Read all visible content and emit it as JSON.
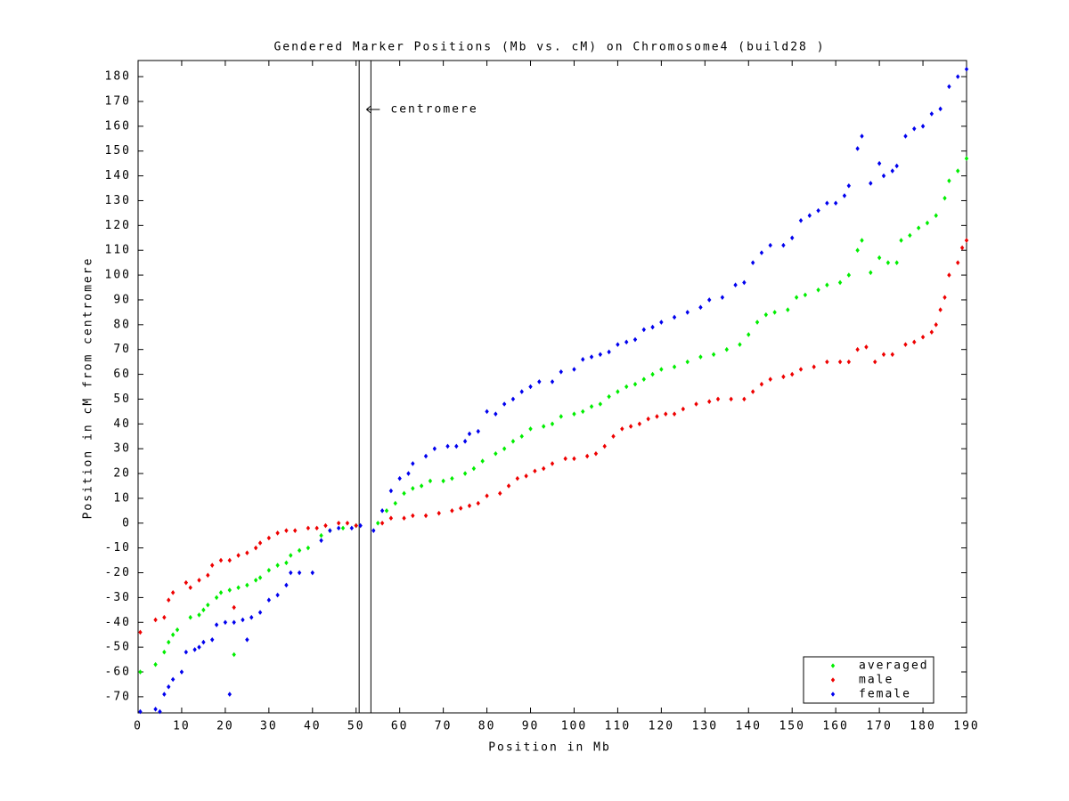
{
  "chart_data": {
    "type": "scatter",
    "title": "Gendered Marker Positions (Mb vs. cM) on Chromosome4 (build28 )",
    "x_label": "Position in Mb",
    "y_label": "Position in cM from centromere",
    "annotation": "centromere",
    "centromere_x": [
      50.7,
      53.4
    ],
    "xlim": [
      0,
      190
    ],
    "ylim": [
      -76.5,
      186.5
    ],
    "xticks": [
      0,
      10,
      20,
      30,
      40,
      50,
      60,
      70,
      80,
      90,
      100,
      110,
      120,
      130,
      140,
      150,
      160,
      170,
      180,
      190
    ],
    "yticks": [
      -70,
      -60,
      -50,
      -40,
      -30,
      -20,
      -10,
      0,
      10,
      20,
      30,
      40,
      50,
      60,
      70,
      80,
      90,
      100,
      110,
      120,
      130,
      140,
      150,
      160,
      170,
      180
    ],
    "legend": "lower right",
    "series": [
      {
        "name": "averaged",
        "color": "#00ee00",
        "x": [
          0.5,
          4,
          6,
          7,
          8,
          9,
          12,
          14,
          15,
          16,
          18,
          19,
          21,
          22,
          23,
          25,
          27,
          28,
          30,
          32,
          34,
          35,
          37,
          39,
          42,
          44,
          47,
          50,
          55,
          57,
          59,
          61,
          63,
          65,
          67,
          70,
          72,
          75,
          77,
          79,
          82,
          84,
          86,
          88,
          90,
          93,
          95,
          97,
          100,
          102,
          104,
          106,
          108,
          110,
          112,
          114,
          116,
          118,
          120,
          123,
          126,
          129,
          132,
          135,
          138,
          140,
          142,
          144,
          146,
          149,
          151,
          153,
          156,
          158,
          161,
          163,
          165,
          166,
          168,
          170,
          172,
          174,
          175,
          177,
          179,
          181,
          183,
          185,
          186,
          188,
          190
        ],
        "values": [
          -60,
          -57,
          -52,
          -48,
          -45,
          -43,
          -38,
          -37,
          -35,
          -33,
          -30,
          -28,
          -27,
          -53,
          -26,
          -25,
          -23,
          -22,
          -19,
          -17,
          -16,
          -13,
          -11,
          -10,
          -5,
          -3,
          -2,
          -1,
          0,
          5,
          8,
          12,
          14,
          15,
          17,
          17,
          18,
          20,
          22,
          25,
          28,
          30,
          33,
          35,
          38,
          39,
          40,
          43,
          44,
          45,
          47,
          48,
          51,
          53,
          55,
          56,
          58,
          60,
          62,
          63,
          65,
          67,
          68,
          70,
          72,
          76,
          81,
          84,
          85,
          86,
          91,
          92,
          94,
          96,
          97,
          100,
          110,
          114,
          101,
          107,
          105,
          105,
          114,
          116,
          119,
          121,
          124,
          131,
          138,
          142,
          147
        ]
      },
      {
        "name": "male",
        "color": "#ee0000",
        "x": [
          0.5,
          4,
          6,
          7,
          8,
          11,
          12,
          14,
          16,
          17,
          19,
          21,
          22,
          23,
          25,
          27,
          28,
          30,
          32,
          34,
          36,
          39,
          41,
          43,
          46,
          48,
          50,
          56,
          58,
          61,
          63,
          66,
          69,
          72,
          74,
          76,
          78,
          80,
          83,
          85,
          87,
          89,
          91,
          93,
          95,
          98,
          100,
          103,
          105,
          107,
          109,
          111,
          113,
          115,
          117,
          119,
          121,
          123,
          125,
          128,
          131,
          133,
          136,
          139,
          141,
          143,
          145,
          148,
          150,
          152,
          155,
          158,
          161,
          163,
          165,
          167,
          169,
          171,
          173,
          176,
          178,
          180,
          182,
          183,
          184,
          185,
          186,
          188,
          189,
          190
        ],
        "values": [
          -44,
          -39,
          -38,
          -31,
          -28,
          -24,
          -26,
          -23,
          -21,
          -17,
          -15,
          -15,
          -34,
          -13,
          -12,
          -10,
          -8,
          -6,
          -4,
          -3,
          -3,
          -2,
          -2,
          -1,
          0,
          0,
          -1,
          0,
          2,
          2,
          3,
          3,
          4,
          5,
          6,
          7,
          8,
          11,
          12,
          15,
          18,
          19,
          21,
          22,
          24,
          26,
          26,
          27,
          28,
          31,
          35,
          38,
          39,
          40,
          42,
          43,
          44,
          44,
          46,
          48,
          49,
          50,
          50,
          50,
          53,
          56,
          58,
          59,
          60,
          62,
          63,
          65,
          65,
          65,
          70,
          71,
          65,
          68,
          68,
          72,
          73,
          75,
          77,
          80,
          86,
          91,
          100,
          105,
          111,
          114
        ]
      },
      {
        "name": "female",
        "color": "#0000ee",
        "x": [
          0.5,
          4,
          5,
          6,
          7,
          8,
          10,
          11,
          13,
          14,
          15,
          17,
          18,
          20,
          21,
          22,
          24,
          25,
          26,
          28,
          30,
          32,
          34,
          35,
          37,
          40,
          42,
          44,
          46,
          49,
          51,
          54,
          56,
          58,
          60,
          62,
          63,
          66,
          68,
          71,
          73,
          75,
          76,
          78,
          80,
          82,
          84,
          86,
          88,
          90,
          92,
          95,
          97,
          100,
          102,
          104,
          106,
          108,
          110,
          112,
          114,
          116,
          118,
          120,
          123,
          126,
          129,
          131,
          134,
          137,
          139,
          141,
          143,
          145,
          148,
          150,
          152,
          154,
          156,
          158,
          160,
          162,
          163,
          165,
          166,
          168,
          170,
          171,
          173,
          174,
          176,
          178,
          180,
          182,
          184,
          186,
          188,
          190
        ],
        "values": [
          -76,
          -75,
          -76,
          -69,
          -66,
          -63,
          -60,
          -52,
          -51,
          -50,
          -48,
          -47,
          -41,
          -40,
          -69,
          -40,
          -39,
          -47,
          -38,
          -36,
          -31,
          -29,
          -25,
          -20,
          -20,
          -20,
          -7,
          -3,
          -2,
          -2,
          -1,
          -3,
          5,
          13,
          18,
          20,
          24,
          27,
          30,
          31,
          31,
          33,
          36,
          37,
          45,
          44,
          48,
          50,
          53,
          55,
          57,
          57,
          61,
          62,
          66,
          67,
          68,
          69,
          72,
          73,
          74,
          78,
          79,
          81,
          83,
          85,
          87,
          90,
          91,
          96,
          97,
          105,
          109,
          112,
          112,
          115,
          122,
          124,
          126,
          129,
          129,
          132,
          136,
          151,
          156,
          137,
          145,
          140,
          142,
          144,
          156,
          159,
          160,
          165,
          167,
          176,
          180,
          183
        ]
      }
    ]
  }
}
